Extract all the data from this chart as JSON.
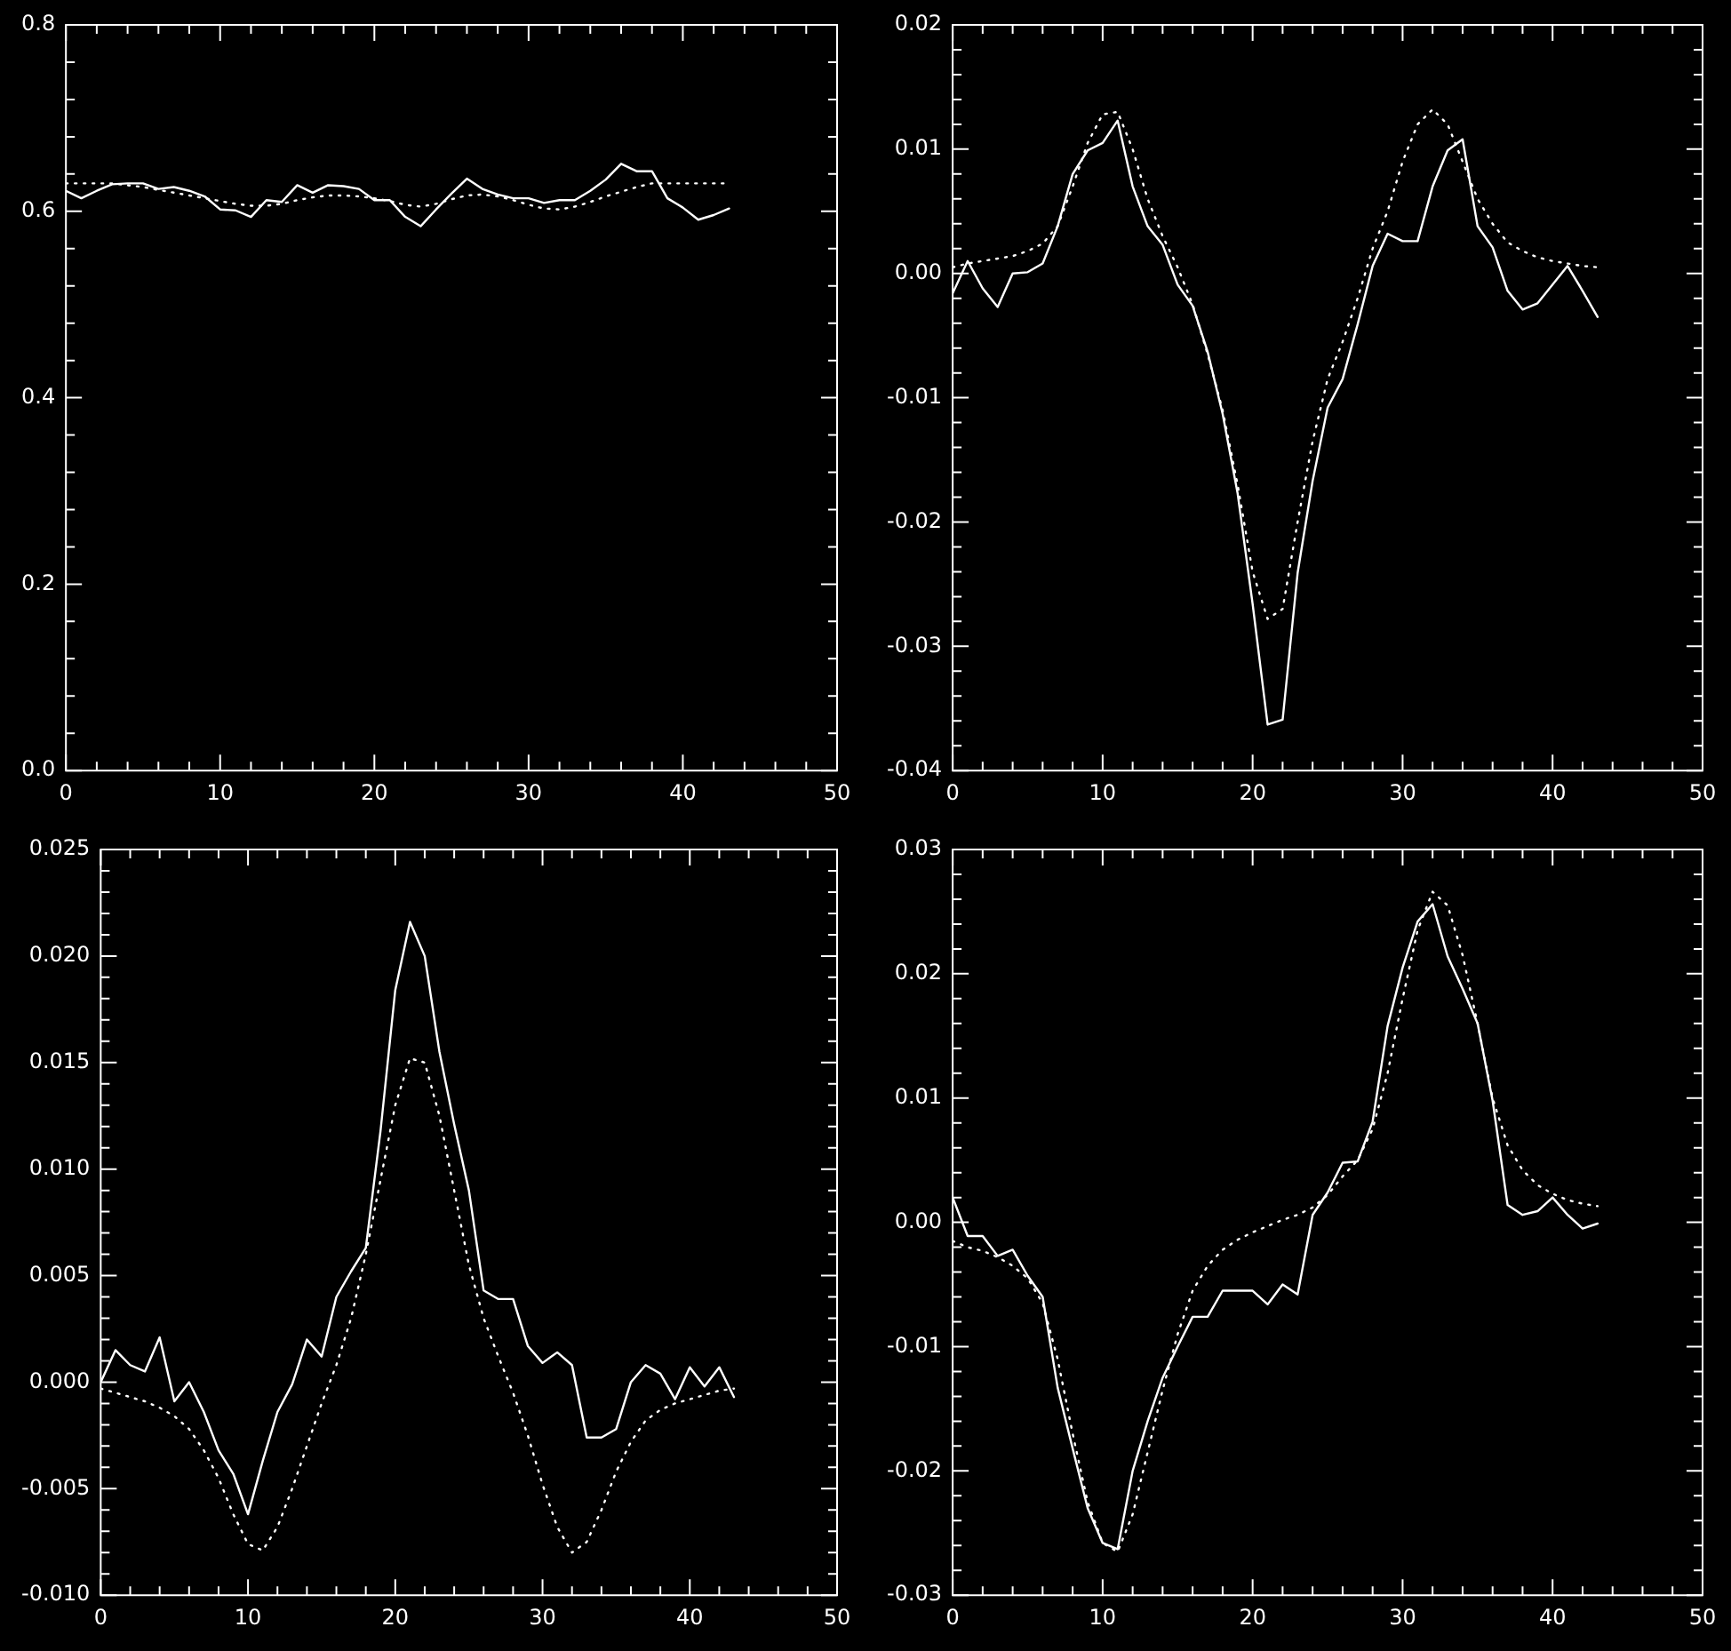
{
  "chart_data": [
    {
      "type": "line",
      "xlim": [
        0,
        50
      ],
      "xticks": [
        0,
        10,
        20,
        30,
        40,
        50
      ],
      "ylim": [
        0,
        0.8
      ],
      "yticks": [
        {
          "value": 0,
          "label": "0.0"
        },
        {
          "value": 0.2,
          "label": "0.2"
        },
        {
          "value": 0.4,
          "label": "0.4"
        },
        {
          "value": 0.6,
          "label": "0.6"
        },
        {
          "value": 0.8,
          "label": "0.8"
        }
      ],
      "grid": false,
      "legend": false,
      "marker": "none",
      "x": [
        0,
        1,
        2,
        3,
        4,
        5,
        6,
        7,
        8,
        9,
        10,
        11,
        12,
        13,
        14,
        15,
        16,
        17,
        18,
        19,
        20,
        21,
        22,
        23,
        24,
        25,
        26,
        27,
        28,
        29,
        30,
        31,
        32,
        33,
        34,
        35,
        36,
        37,
        38,
        39,
        40,
        41,
        42,
        43
      ],
      "series": [
        {
          "color": "#ffffff",
          "line_style": "solid",
          "values": [
            0.622,
            0.614,
            0.622,
            0.629,
            0.63,
            0.63,
            0.624,
            0.626,
            0.622,
            0.616,
            0.602,
            0.601,
            0.594,
            0.612,
            0.61,
            0.628,
            0.62,
            0.628,
            0.627,
            0.624,
            0.612,
            0.612,
            0.594,
            0.584,
            0.602,
            0.619,
            0.635,
            0.624,
            0.618,
            0.614,
            0.614,
            0.609,
            0.612,
            0.612,
            0.622,
            0.634,
            0.651,
            0.643,
            0.643,
            0.614,
            0.604,
            0.591,
            0.596,
            0.603
          ]
        },
        {
          "color": "#ffffff",
          "line_style": "dotted",
          "values": [
            0.63,
            0.63,
            0.63,
            0.63,
            0.628,
            0.626,
            0.623,
            0.62,
            0.617,
            0.614,
            0.611,
            0.608,
            0.606,
            0.606,
            0.608,
            0.612,
            0.615,
            0.617,
            0.617,
            0.616,
            0.614,
            0.611,
            0.607,
            0.605,
            0.608,
            0.613,
            0.617,
            0.618,
            0.616,
            0.612,
            0.607,
            0.603,
            0.602,
            0.605,
            0.61,
            0.616,
            0.621,
            0.626,
            0.63,
            0.63,
            0.63,
            0.63,
            0.63,
            0.63
          ]
        }
      ]
    },
    {
      "type": "line",
      "xlim": [
        0,
        50
      ],
      "xticks": [
        0,
        10,
        20,
        30,
        40,
        50
      ],
      "ylim": [
        -0.04,
        0.02
      ],
      "yticks": [
        {
          "value": -0.04,
          "label": "-0.04"
        },
        {
          "value": -0.03,
          "label": "-0.03"
        },
        {
          "value": -0.02,
          "label": "-0.02"
        },
        {
          "value": -0.01,
          "label": "-0.01"
        },
        {
          "value": 0,
          "label": "0.00"
        },
        {
          "value": 0.01,
          "label": "0.01"
        },
        {
          "value": 0.02,
          "label": "0.02"
        }
      ],
      "grid": false,
      "legend": false,
      "marker": "none",
      "x": [
        0,
        1,
        2,
        3,
        4,
        5,
        6,
        7,
        8,
        9,
        10,
        11,
        12,
        13,
        14,
        15,
        16,
        17,
        18,
        19,
        20,
        21,
        22,
        23,
        24,
        25,
        26,
        27,
        28,
        29,
        30,
        31,
        32,
        33,
        34,
        35,
        36,
        37,
        38,
        39,
        40,
        41,
        42,
        43
      ],
      "series": [
        {
          "color": "#ffffff",
          "line_style": "solid",
          "values": [
            -0.0016,
            0.001,
            -0.0012,
            -0.0027,
            0.0,
            0.0001,
            0.0008,
            0.0038,
            0.008,
            0.0099,
            0.0105,
            0.0123,
            0.007,
            0.0038,
            0.0023,
            -0.0009,
            -0.0026,
            -0.0063,
            -0.0113,
            -0.0177,
            -0.0266,
            -0.0363,
            -0.0359,
            -0.0241,
            -0.0167,
            -0.0108,
            -0.0085,
            -0.0041,
            0.0006,
            0.0032,
            0.0026,
            0.0026,
            0.007,
            0.0099,
            0.0108,
            0.0038,
            0.0021,
            -0.0014,
            -0.0029,
            -0.0024,
            -0.0009,
            0.0006,
            -0.0014,
            -0.0035
          ]
        },
        {
          "color": "#ffffff",
          "line_style": "dotted",
          "values": [
            0.0005,
            0.0008,
            0.001,
            0.0012,
            0.0014,
            0.0018,
            0.0024,
            0.0038,
            0.007,
            0.0105,
            0.0128,
            0.013,
            0.01,
            0.006,
            0.003,
            0.0005,
            -0.0025,
            -0.0065,
            -0.011,
            -0.017,
            -0.024,
            -0.0278,
            -0.027,
            -0.02,
            -0.0135,
            -0.0085,
            -0.0055,
            -0.002,
            0.002,
            0.005,
            0.009,
            0.012,
            0.0132,
            0.012,
            0.009,
            0.006,
            0.004,
            0.0025,
            0.0018,
            0.0013,
            0.001,
            0.0008,
            0.0006,
            0.0005
          ]
        }
      ]
    },
    {
      "type": "line",
      "xlim": [
        0,
        50
      ],
      "xticks": [
        0,
        10,
        20,
        30,
        40,
        50
      ],
      "ylim": [
        -0.01,
        0.025
      ],
      "yticks": [
        {
          "value": -0.01,
          "label": "-0.010"
        },
        {
          "value": -0.005,
          "label": "-0.005"
        },
        {
          "value": 0,
          "label": "0.000"
        },
        {
          "value": 0.005,
          "label": "0.005"
        },
        {
          "value": 0.01,
          "label": "0.010"
        },
        {
          "value": 0.015,
          "label": "0.015"
        },
        {
          "value": 0.02,
          "label": "0.020"
        },
        {
          "value": 0.025,
          "label": "0.025"
        }
      ],
      "grid": false,
      "legend": false,
      "marker": "none",
      "x": [
        0,
        1,
        2,
        3,
        4,
        5,
        6,
        7,
        8,
        9,
        10,
        11,
        12,
        13,
        14,
        15,
        16,
        17,
        18,
        19,
        20,
        21,
        22,
        23,
        24,
        25,
        26,
        27,
        28,
        29,
        30,
        31,
        32,
        33,
        34,
        35,
        36,
        37,
        38,
        39,
        40,
        41,
        42,
        43
      ],
      "series": [
        {
          "color": "#ffffff",
          "line_style": "solid",
          "values": [
            0.0,
            0.0015,
            0.0008,
            0.0005,
            0.0021,
            -0.0009,
            0.0,
            -0.0014,
            -0.0032,
            -0.0043,
            -0.0062,
            -0.0037,
            -0.0014,
            -0.0001,
            0.002,
            0.0012,
            0.004,
            0.0052,
            0.0063,
            0.0118,
            0.0184,
            0.0216,
            0.02,
            0.0155,
            0.0121,
            0.009,
            0.0043,
            0.0039,
            0.0039,
            0.0017,
            0.0009,
            0.0014,
            0.0008,
            -0.0026,
            -0.0026,
            -0.0022,
            0.0,
            0.0008,
            0.0004,
            -0.0008,
            0.0007,
            -0.0002,
            0.0007,
            -0.0007
          ]
        },
        {
          "color": "#ffffff",
          "line_style": "dotted",
          "values": [
            -0.0003,
            -0.0005,
            -0.0007,
            -0.0009,
            -0.0012,
            -0.0016,
            -0.0022,
            -0.0032,
            -0.0045,
            -0.0062,
            -0.0076,
            -0.0079,
            -0.0068,
            -0.005,
            -0.003,
            -0.001,
            0.0008,
            0.003,
            0.006,
            0.0095,
            0.013,
            0.0152,
            0.015,
            0.0125,
            0.009,
            0.0055,
            0.003,
            0.0012,
            -0.0005,
            -0.0025,
            -0.0048,
            -0.0068,
            -0.008,
            -0.0075,
            -0.006,
            -0.0042,
            -0.0028,
            -0.0018,
            -0.0013,
            -0.001,
            -0.0008,
            -0.0006,
            -0.0004,
            -0.0003
          ]
        }
      ]
    },
    {
      "type": "line",
      "xlim": [
        0,
        50
      ],
      "xticks": [
        0,
        10,
        20,
        30,
        40,
        50
      ],
      "ylim": [
        -0.03,
        0.03
      ],
      "yticks": [
        {
          "value": -0.03,
          "label": "-0.03"
        },
        {
          "value": -0.02,
          "label": "-0.02"
        },
        {
          "value": -0.01,
          "label": "-0.01"
        },
        {
          "value": 0,
          "label": "0.00"
        },
        {
          "value": 0.01,
          "label": "0.01"
        },
        {
          "value": 0.02,
          "label": "0.02"
        },
        {
          "value": 0.03,
          "label": "0.03"
        }
      ],
      "grid": false,
      "legend": false,
      "marker": "none",
      "x": [
        0,
        1,
        2,
        3,
        4,
        5,
        6,
        7,
        8,
        9,
        10,
        11,
        12,
        13,
        14,
        15,
        16,
        17,
        18,
        19,
        20,
        21,
        22,
        23,
        24,
        25,
        26,
        27,
        28,
        29,
        30,
        31,
        32,
        33,
        34,
        35,
        36,
        37,
        38,
        39,
        40,
        41,
        42,
        43
      ],
      "series": [
        {
          "color": "#ffffff",
          "line_style": "solid",
          "values": [
            0.002,
            -0.0011,
            -0.0011,
            -0.0027,
            -0.0022,
            -0.0043,
            -0.006,
            -0.0133,
            -0.0182,
            -0.023,
            -0.0258,
            -0.0263,
            -0.02,
            -0.016,
            -0.0125,
            -0.01,
            -0.0076,
            -0.0076,
            -0.0055,
            -0.0055,
            -0.0055,
            -0.0066,
            -0.005,
            -0.0058,
            0.0006,
            0.0024,
            0.0048,
            0.0049,
            0.0081,
            0.0158,
            0.0205,
            0.0242,
            0.0256,
            0.0214,
            0.0188,
            0.016,
            0.0098,
            0.0014,
            0.0006,
            0.0009,
            0.002,
            0.0006,
            -0.0005,
            -0.0001
          ]
        },
        {
          "color": "#ffffff",
          "line_style": "dotted",
          "values": [
            -0.0015,
            -0.002,
            -0.0023,
            -0.0028,
            -0.0035,
            -0.0045,
            -0.0065,
            -0.011,
            -0.017,
            -0.0225,
            -0.0258,
            -0.0265,
            -0.0235,
            -0.0185,
            -0.0135,
            -0.009,
            -0.0055,
            -0.0035,
            -0.0022,
            -0.0014,
            -0.0008,
            -0.0003,
            0.0002,
            0.0006,
            0.0012,
            0.0022,
            0.0037,
            0.005,
            0.0075,
            0.012,
            0.018,
            0.0235,
            0.0266,
            0.0255,
            0.0215,
            0.016,
            0.01,
            0.0062,
            0.0042,
            0.003,
            0.0023,
            0.0018,
            0.0015,
            0.0013
          ]
        }
      ]
    }
  ]
}
